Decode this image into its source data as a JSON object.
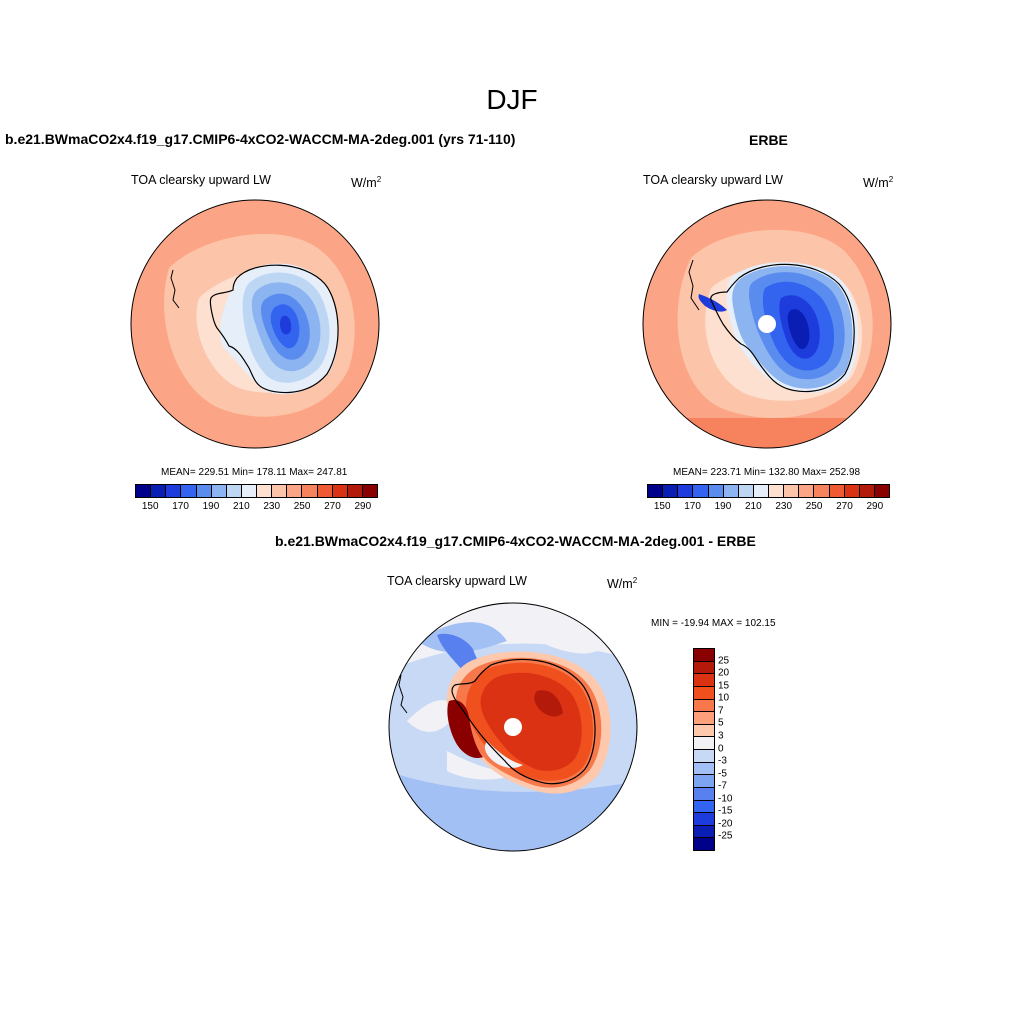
{
  "season_title": "DJF",
  "panels": {
    "model": {
      "title": "b.e21.BWmaCO2x4.f19_g17.CMIP6-4xCO2-WACCM-MA-2deg.001 (yrs 71-110)",
      "variable": "TOA clearsky upward LW",
      "units_base": "W/m",
      "units_exp": "2",
      "stats": "MEAN= 229.51  Min= 178.11  Max= 247.81"
    },
    "obs": {
      "title": "ERBE",
      "variable": "TOA clearsky upward LW",
      "units_base": "W/m",
      "units_exp": "2",
      "stats": "MEAN= 223.71  Min= 132.80  Max= 252.98"
    },
    "diff": {
      "title": "b.e21.BWmaCO2x4.f19_g17.CMIP6-4xCO2-WACCM-MA-2deg.001 - ERBE",
      "variable": "TOA clearsky upward LW",
      "units_base": "W/m",
      "units_exp": "2",
      "stats": "MIN = -19.94 MAX = 102.15"
    }
  },
  "colorbars": {
    "absolute": {
      "colors": [
        "#00008a",
        "#0a1eb4",
        "#1e3cdc",
        "#3264f0",
        "#5a8cf0",
        "#8cb4f0",
        "#bcd6f4",
        "#e6eefa",
        "#fde0d0",
        "#fcc4a8",
        "#fca586",
        "#f7835e",
        "#f05a32",
        "#dc3214",
        "#b41a0a",
        "#8a0000"
      ],
      "tick_labels": [
        "150",
        "170",
        "190",
        "210",
        "230",
        "250",
        "270",
        "290"
      ]
    },
    "difference": {
      "colors_top_to_bottom": [
        "#8a0000",
        "#b41a0a",
        "#dc3214",
        "#f0501e",
        "#f7784a",
        "#fba07a",
        "#fdc8ac",
        "#f2f2f6",
        "#c8d9f6",
        "#a3c0f4",
        "#7da4f0",
        "#5880ee",
        "#3264f0",
        "#1e3cdc",
        "#0a1eb4",
        "#00008a"
      ],
      "tick_labels": [
        "25",
        "20",
        "15",
        "10",
        "7",
        "5",
        "3",
        "0",
        "-3",
        "-5",
        "-7",
        "-10",
        "-15",
        "-20",
        "-25"
      ]
    }
  }
}
